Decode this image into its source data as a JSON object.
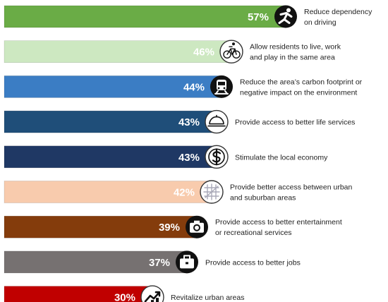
{
  "chart_data": {
    "type": "bar",
    "orientation": "horizontal",
    "categories": [
      "Reduce dependency on driving",
      "Allow residents to live, work and play in the same area",
      "Reduce the area's carbon footprint or negative impact on the environment",
      "Provide access to better life services",
      "Stimulate the local economy",
      "Provide better access between urban and suburban areas",
      "Provide access to better entertainment or recreational services",
      "Provide access to better jobs",
      "Revitalize urban areas"
    ],
    "values": [
      57,
      46,
      44,
      43,
      43,
      42,
      39,
      37,
      30
    ],
    "value_labels": [
      "57%",
      "46%",
      "44%",
      "43%",
      "43%",
      "42%",
      "39%",
      "37%",
      "30%"
    ],
    "label_lines": [
      [
        "Reduce dependency",
        "on driving"
      ],
      [
        "Allow residents to live, work",
        "and play in the same area"
      ],
      [
        "Reduce the area’s carbon footprint or",
        "negative impact on the environment"
      ],
      [
        "Provide access to better life services"
      ],
      [
        "Stimulate the local economy"
      ],
      [
        "Provide better access between urban",
        "and suburban areas"
      ],
      [
        "Provide access to better entertainment",
        "or recreational services"
      ],
      [
        "Provide access to better jobs"
      ],
      [
        "Revitalize urban areas"
      ]
    ],
    "icons": [
      "runner-icon",
      "bicycle-icon",
      "train-icon",
      "service-icon",
      "dollar-icon",
      "map-icon",
      "camera-icon",
      "briefcase-icon",
      "growth-icon"
    ],
    "colors": [
      "#6aac46",
      "#cde8c1",
      "#3b7dc4",
      "#1f4e79",
      "#1f3864",
      "#f8cbad",
      "#843c0c",
      "#767171",
      "#c00000"
    ],
    "icon_styles": [
      "dark",
      "outline",
      "dark",
      "outline",
      "outline",
      "outline",
      "dark",
      "dark",
      "outline"
    ],
    "grid": false,
    "legend": "none"
  }
}
